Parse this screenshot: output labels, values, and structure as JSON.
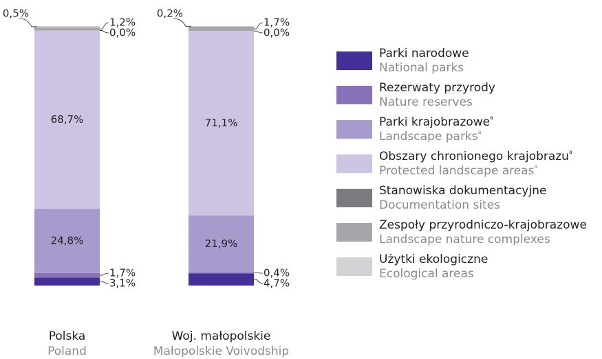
{
  "chart_data": {
    "type": "stacked-bar-100",
    "categories": [
      "Polska",
      "Woj. małopolskie"
    ],
    "categories_en": [
      "Poland",
      "Małopolskie Voivodship"
    ],
    "series": [
      {
        "name": "Parki narodowe",
        "name_en": "National parks",
        "color": "#45309a",
        "values": [
          3.1,
          4.7
        ],
        "value_labels": [
          "3,1%",
          "4,7%"
        ]
      },
      {
        "name": "Rezerwaty przyrody",
        "name_en": "Nature reserves",
        "color": "#8a72ba",
        "values": [
          1.7,
          0.4
        ],
        "value_labels": [
          "1,7%",
          "0,4%"
        ]
      },
      {
        "name": "Parki krajobrazowe",
        "name_note": "a",
        "name_en": "Landscape parks",
        "name_en_note": "a",
        "color": "#a99acd",
        "values": [
          24.8,
          21.9
        ],
        "value_labels": [
          "24,8%",
          "21,9%"
        ]
      },
      {
        "name": "Obszary chronionego krajobrazu",
        "name_note": "a",
        "name_en": "Protected landscape areas",
        "name_en_note": "a",
        "color": "#ccc4e2",
        "values": [
          68.7,
          71.1
        ],
        "value_labels": [
          "68,7%",
          "71,1%"
        ]
      },
      {
        "name": "Stanowiska dokumentacyjne",
        "name_en": "Documentation sites",
        "color": "#7b7b80",
        "values": [
          0.0,
          0.0
        ],
        "value_labels": [
          "0,0%",
          "0,0%"
        ]
      },
      {
        "name": "Zespoły przyrodniczo-krajobrazowe",
        "name_en": "Landscape nature complexes",
        "color": "#a7a7ab",
        "values": [
          1.2,
          1.7
        ],
        "value_labels": [
          "1,2%",
          "1,7%"
        ]
      },
      {
        "name": "Użytki ekologiczne",
        "name_en": "Ecological areas",
        "color": "#d2d2d4",
        "values": [
          0.5,
          0.2
        ],
        "value_labels": [
          "0,5%",
          "0,2%"
        ]
      }
    ]
  }
}
